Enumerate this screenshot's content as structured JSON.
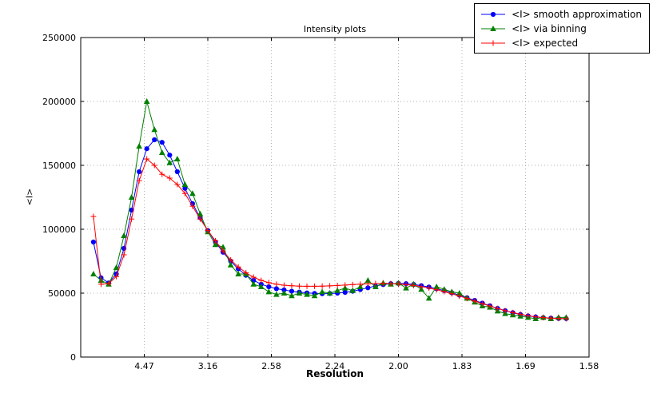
{
  "chart_data": {
    "type": "line",
    "title": "Intensity plots",
    "xlabel": "Resolution",
    "ylabel": "<I>",
    "x_axis_note": "x positions are linear in 1/d^2; tick labels show resolution d in Angstrom",
    "xlim": [
      0,
      0.4
    ],
    "ylim": [
      0,
      250000
    ],
    "grid": true,
    "legend_position": "top-right, outside axes, black-bordered box",
    "xticks": [
      {
        "pos": 0.05,
        "label": "4.47"
      },
      {
        "pos": 0.1,
        "label": "3.16"
      },
      {
        "pos": 0.15,
        "label": "2.58"
      },
      {
        "pos": 0.2,
        "label": "2.24"
      },
      {
        "pos": 0.25,
        "label": "2.00"
      },
      {
        "pos": 0.3,
        "label": "1.83"
      },
      {
        "pos": 0.35,
        "label": "1.69"
      },
      {
        "pos": 0.4,
        "label": "1.58"
      }
    ],
    "yticks": [
      {
        "pos": 0,
        "label": "0"
      },
      {
        "pos": 50000,
        "label": "50000"
      },
      {
        "pos": 100000,
        "label": "100000"
      },
      {
        "pos": 150000,
        "label": "150000"
      },
      {
        "pos": 200000,
        "label": "200000"
      },
      {
        "pos": 250000,
        "label": "250000"
      }
    ],
    "x": [
      0.01,
      0.016,
      0.022,
      0.028,
      0.034,
      0.04,
      0.046,
      0.052,
      0.058,
      0.064,
      0.07,
      0.076,
      0.082,
      0.088,
      0.094,
      0.1,
      0.106,
      0.112,
      0.118,
      0.124,
      0.13,
      0.136,
      0.142,
      0.148,
      0.154,
      0.16,
      0.166,
      0.172,
      0.178,
      0.184,
      0.19,
      0.196,
      0.202,
      0.208,
      0.214,
      0.22,
      0.226,
      0.232,
      0.238,
      0.244,
      0.25,
      0.256,
      0.262,
      0.268,
      0.274,
      0.28,
      0.286,
      0.292,
      0.298,
      0.304,
      0.31,
      0.316,
      0.322,
      0.328,
      0.334,
      0.34,
      0.346,
      0.352,
      0.358,
      0.364,
      0.37,
      0.376,
      0.382
    ],
    "series": [
      {
        "name": "<I> smooth approximation",
        "color": "#0000ff",
        "marker": "circle",
        "values": [
          90000,
          62000,
          58000,
          65000,
          85000,
          115000,
          145000,
          163000,
          170000,
          168000,
          158000,
          145000,
          132000,
          120000,
          109000,
          99000,
          90000,
          82000,
          75000,
          69000,
          64000,
          60000,
          57000,
          55000,
          53500,
          52500,
          51500,
          50800,
          50200,
          49800,
          49600,
          49700,
          50000,
          50600,
          51500,
          52800,
          54200,
          55600,
          56700,
          57400,
          57600,
          57400,
          56800,
          55900,
          54800,
          53500,
          52000,
          50300,
          48400,
          46400,
          44300,
          42200,
          40100,
          38100,
          36300,
          34700,
          33300,
          32200,
          31400,
          30800,
          30400,
          30200,
          30100
        ]
      },
      {
        "name": "<I> via binning",
        "color": "#008000",
        "marker": "triangle",
        "values": [
          65000,
          60000,
          57000,
          70000,
          95000,
          125000,
          165000,
          200000,
          178000,
          160000,
          152000,
          155000,
          135000,
          128000,
          112000,
          98000,
          88000,
          86000,
          72000,
          65000,
          65000,
          57000,
          55000,
          51000,
          49000,
          50000,
          48000,
          50000,
          49000,
          48000,
          51000,
          50000,
          52000,
          54000,
          52000,
          55000,
          60000,
          55000,
          58000,
          57000,
          58000,
          54000,
          57000,
          53000,
          46000,
          55000,
          53000,
          51000,
          50000,
          46000,
          43000,
          40000,
          39000,
          36000,
          34000,
          33000,
          32000,
          31000,
          30000,
          31000,
          30000,
          31000,
          31000
        ]
      },
      {
        "name": "<I> expected",
        "color": "#ff0000",
        "marker": "plus",
        "values": [
          110000,
          57000,
          57500,
          63000,
          80000,
          108000,
          138000,
          155000,
          150000,
          143000,
          140000,
          135000,
          128000,
          118000,
          108000,
          99000,
          91000,
          83000,
          76000,
          70500,
          66000,
          62500,
          60000,
          58200,
          57000,
          56200,
          55800,
          55500,
          55400,
          55400,
          55500,
          55700,
          56000,
          56300,
          56700,
          57000,
          57300,
          57500,
          57600,
          57500,
          57200,
          56700,
          56000,
          55100,
          54000,
          52700,
          51200,
          49500,
          47700,
          45800,
          43800,
          41800,
          39900,
          38000,
          36300,
          34800,
          33500,
          32400,
          31500,
          30900,
          30500,
          30200,
          30000
        ]
      }
    ]
  }
}
